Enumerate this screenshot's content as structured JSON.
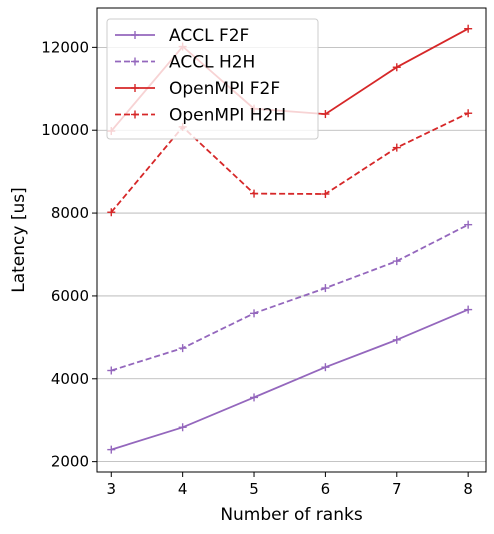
{
  "chart_data": {
    "type": "line",
    "xlabel": "Number of ranks",
    "ylabel": "Latency [us]",
    "x": [
      3,
      4,
      5,
      6,
      7,
      8
    ],
    "xticks": [
      "3",
      "4",
      "5",
      "6",
      "7",
      "8"
    ],
    "yticks": [
      "2000",
      "4000",
      "6000",
      "8000",
      "10000",
      "12000"
    ],
    "xlim": [
      2.8,
      8.25
    ],
    "ylim": [
      1750,
      12950
    ],
    "grid": "horizontal",
    "legend_position": "top-left",
    "series": [
      {
        "name": "ACCL F2F",
        "color": "#9467bd",
        "linestyle": "solid",
        "marker": "+",
        "values": [
          2290,
          2830,
          3550,
          4280,
          4940,
          5670
        ]
      },
      {
        "name": "ACCL H2H",
        "color": "#9467bd",
        "linestyle": "dashed",
        "marker": "+",
        "values": [
          4200,
          4740,
          5580,
          6190,
          6840,
          7720
        ]
      },
      {
        "name": "OpenMPI F2F",
        "color": "#d62728",
        "linestyle": "solid",
        "marker": "+",
        "values": [
          9980,
          12020,
          10520,
          10390,
          11520,
          12450
        ]
      },
      {
        "name": "OpenMPI  H2H",
        "color": "#d62728",
        "linestyle": "dashed",
        "marker": "+",
        "values": [
          8020,
          10080,
          8470,
          8460,
          9580,
          10410
        ]
      }
    ]
  }
}
